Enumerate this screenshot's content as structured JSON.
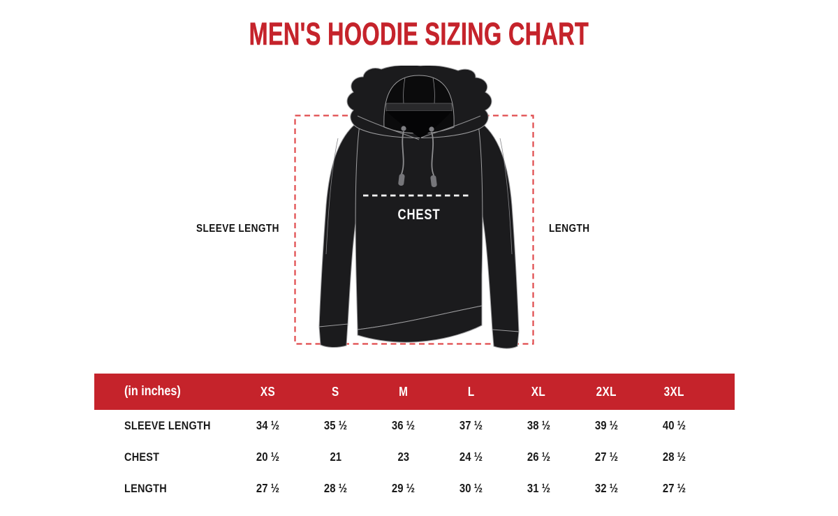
{
  "title": "MEN'S HOODIE SIZING CHART",
  "colors": {
    "brand_red": "#C5232B",
    "dash_red": "#E04A4C",
    "hoodie_black": "#1B1B1D",
    "text_black": "#1A1A1A"
  },
  "diagram": {
    "sleeve_length_label": "SLEEVE LENGTH",
    "length_label": "LENGTH",
    "chest_label": "CHEST"
  },
  "chart_data": {
    "type": "table",
    "title": "MEN'S HOODIE SIZING CHART",
    "unit_label": "(in inches)",
    "columns": [
      "XS",
      "S",
      "M",
      "L",
      "XL",
      "2XL",
      "3XL"
    ],
    "rows": [
      {
        "label": "SLEEVE LENGTH",
        "values": [
          "34 ½",
          "35 ½",
          "36 ½",
          "37 ½",
          "38 ½",
          "39 ½",
          "40 ½"
        ]
      },
      {
        "label": "CHEST",
        "values": [
          "20 ½",
          "21",
          "23",
          "24 ½",
          "26 ½",
          "27 ½",
          "28 ½"
        ]
      },
      {
        "label": "LENGTH",
        "values": [
          "27 ½",
          "28 ½",
          "29 ½",
          "30 ½",
          "31 ½",
          "32 ½",
          "27 ½"
        ]
      }
    ]
  }
}
